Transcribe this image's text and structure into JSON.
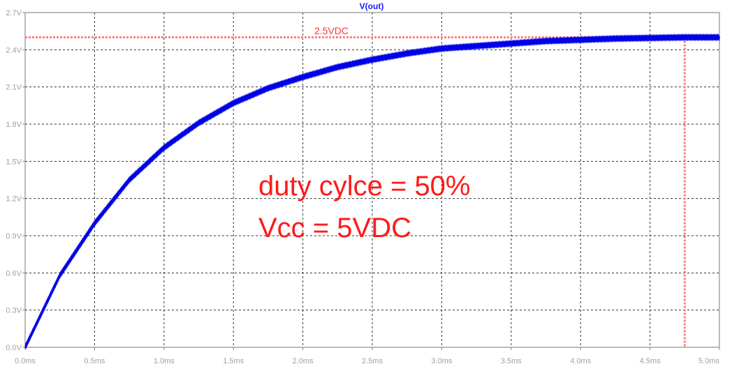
{
  "chart_data": {
    "type": "line",
    "title": "V(out)",
    "xlabel": "",
    "ylabel": "",
    "x_unit": "ms",
    "y_unit": "V",
    "xlim": [
      0.0,
      5.0
    ],
    "ylim": [
      0.0,
      2.7
    ],
    "x_ticks": [
      "0.0ms",
      "0.5ms",
      "1.0ms",
      "1.5ms",
      "2.0ms",
      "2.5ms",
      "3.0ms",
      "3.5ms",
      "4.0ms",
      "4.5ms",
      "5.0ms"
    ],
    "y_ticks": [
      "0.0V",
      "0.3V",
      "0.6V",
      "0.9V",
      "1.2V",
      "1.5V",
      "1.8V",
      "2.1V",
      "2.4V",
      "2.7V"
    ],
    "grid": true,
    "series": [
      {
        "color": "#0000e6",
        "x": [
          0.0,
          0.25,
          0.5,
          0.75,
          1.0,
          1.25,
          1.5,
          1.75,
          2.0,
          2.25,
          2.5,
          2.75,
          3.0,
          3.25,
          3.5,
          3.75,
          4.0,
          4.25,
          4.5,
          4.75,
          5.0
        ],
        "y": [
          0.0,
          0.58,
          1.0,
          1.35,
          1.61,
          1.81,
          1.97,
          2.09,
          2.18,
          2.26,
          2.32,
          2.37,
          2.41,
          2.43,
          2.45,
          2.47,
          2.48,
          2.49,
          2.495,
          2.5,
          2.5
        ]
      }
    ],
    "reference_lines": [
      {
        "orientation": "horizontal",
        "value": 2.5,
        "label": "2.5VDC",
        "color": "#ff8080"
      },
      {
        "orientation": "vertical",
        "value": 4.75,
        "color": "#ff8080"
      }
    ],
    "annotations": [
      {
        "text": "duty cylce = 50%",
        "color": "#ff1a1a"
      },
      {
        "text": "Vcc = 5VDC",
        "color": "#ff1a1a"
      }
    ]
  }
}
